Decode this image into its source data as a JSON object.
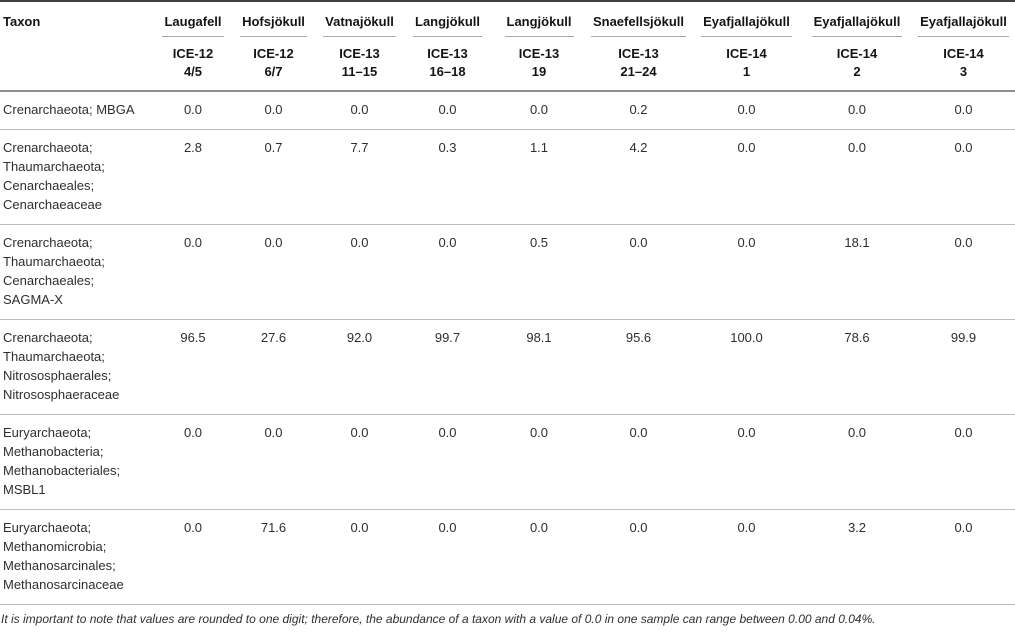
{
  "table": {
    "taxon_header": "Taxon",
    "columns": [
      {
        "site": "Laugafell",
        "sample_id": "ICE-12",
        "sample_num": "4/5"
      },
      {
        "site": "Hofsjökull",
        "sample_id": "ICE-12",
        "sample_num": "6/7"
      },
      {
        "site": "Vatnajökull",
        "sample_id": "ICE-13",
        "sample_num": "11–15"
      },
      {
        "site": "Langjökull",
        "sample_id": "ICE-13",
        "sample_num": "16–18"
      },
      {
        "site": "Langjökull",
        "sample_id": "ICE-13",
        "sample_num": "19"
      },
      {
        "site": "Snaefellsjökull",
        "sample_id": "ICE-13",
        "sample_num": "21–24"
      },
      {
        "site": "Eyafjallajökull",
        "sample_id": "ICE-14",
        "sample_num": "1"
      },
      {
        "site": "Eyafjallajökull",
        "sample_id": "ICE-14",
        "sample_num": "2"
      },
      {
        "site": "Eyafjallajökull",
        "sample_id": "ICE-14",
        "sample_num": "3"
      }
    ],
    "rows": [
      {
        "taxon": "Crenarchaeota; MBGA",
        "values": [
          "0.0",
          "0.0",
          "0.0",
          "0.0",
          "0.0",
          "0.2",
          "0.0",
          "0.0",
          "0.0"
        ]
      },
      {
        "taxon": "Crenarchaeota; Thaumarchaeota; Cenarchaeales; Cenarchaeaceae",
        "values": [
          "2.8",
          "0.7",
          "7.7",
          "0.3",
          "1.1",
          "4.2",
          "0.0",
          "0.0",
          "0.0"
        ]
      },
      {
        "taxon": "Crenarchaeota; Thaumarchaeota; Cenarchaeales; SAGMA-X",
        "values": [
          "0.0",
          "0.0",
          "0.0",
          "0.0",
          "0.5",
          "0.0",
          "0.0",
          "18.1",
          "0.0"
        ]
      },
      {
        "taxon": "Crenarchaeota; Thaumarchaeota; Nitrososphaerales; Nitrososphaeraceae",
        "values": [
          "96.5",
          "27.6",
          "92.0",
          "99.7",
          "98.1",
          "95.6",
          "100.0",
          "78.6",
          "99.9"
        ]
      },
      {
        "taxon": "Euryarchaeota; Methanobacteria; Methanobacteriales; MSBL1",
        "values": [
          "0.0",
          "0.0",
          "0.0",
          "0.0",
          "0.0",
          "0.0",
          "0.0",
          "0.0",
          "0.0"
        ]
      },
      {
        "taxon": "Euryarchaeota; Methanomicrobia; Methanosarcinales; Methanosarcinaceae",
        "values": [
          "0.0",
          "71.6",
          "0.0",
          "0.0",
          "0.0",
          "0.0",
          "0.0",
          "3.2",
          "0.0"
        ]
      }
    ],
    "footnote": "It is important to note that values are rounded to one digit; therefore, the abundance of a taxon with a value of 0.0 in one sample can range between 0.00 and 0.04%."
  }
}
